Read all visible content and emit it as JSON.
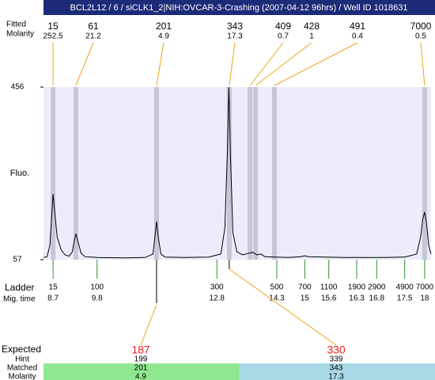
{
  "chart_data": {
    "type": "line",
    "title": "BCL2L12 / 6 / siCLK1_2|NIH:OVCAR-3-Crashing (2007-04-12 96hrs) / Well ID 1018631",
    "y_label": "Fluo.",
    "ylim": [
      57,
      456
    ],
    "yticks": [
      57,
      456
    ],
    "xlim": [
      8.46,
      18.16
    ],
    "x": [
      8.46,
      8.55,
      8.62,
      8.66,
      8.7,
      8.74,
      8.8,
      8.9,
      9.0,
      9.1,
      9.18,
      9.23,
      9.27,
      9.32,
      9.4,
      9.5,
      9.8,
      10.5,
      11.0,
      11.2,
      11.25,
      11.29,
      11.33,
      11.4,
      11.5,
      12.0,
      12.6,
      12.9,
      13.0,
      13.06,
      13.1,
      13.14,
      13.2,
      13.3,
      13.45,
      13.6,
      13.7,
      13.8,
      13.9,
      14.0,
      14.3,
      14.6,
      14.9,
      15.0,
      15.1,
      15.5,
      16.0,
      16.5,
      17.0,
      17.5,
      17.8,
      17.9,
      17.95,
      18.0,
      18.05,
      18.1,
      18.16
    ],
    "values": [
      62,
      64,
      90,
      150,
      209,
      170,
      110,
      80,
      68,
      65,
      75,
      100,
      117,
      100,
      72,
      64,
      62,
      61,
      62,
      70,
      110,
      145,
      110,
      70,
      63,
      62,
      63,
      70,
      130,
      300,
      456,
      300,
      120,
      75,
      68,
      72,
      74,
      68,
      70,
      64,
      63,
      62,
      64,
      66,
      64,
      63,
      62,
      62,
      62,
      63,
      70,
      110,
      150,
      167,
      140,
      90,
      70
    ],
    "peaks": {
      "row_labels": [
        "Fitted",
        "Molarity"
      ],
      "sizes": [
        15,
        61,
        201,
        343,
        409,
        428,
        491,
        7000
      ],
      "molarity": [
        252.5,
        21.2,
        4.9,
        17.3,
        0.7,
        1,
        0.4,
        0.5
      ],
      "x": [
        8.7,
        9.27,
        11.29,
        13.11,
        13.63,
        13.77,
        14.24,
        18.0
      ]
    },
    "ladder": {
      "row_labels": [
        "Ladder",
        "Mig. time"
      ],
      "sizes": [
        15,
        100,
        300,
        500,
        700,
        1100,
        1900,
        2900,
        4900,
        7000
      ],
      "mig_time": [
        8.7,
        9.8,
        12.8,
        14.3,
        15,
        15.6,
        16.3,
        16.8,
        17.5,
        18
      ]
    },
    "expected": {
      "row_labels": [
        "Expected",
        "Hint",
        "Matched",
        "Molarity"
      ],
      "expected": [
        187,
        330
      ],
      "hint": [
        199,
        339
      ],
      "matched": [
        201,
        343
      ],
      "molarity": [
        4.9,
        17.3
      ]
    }
  }
}
